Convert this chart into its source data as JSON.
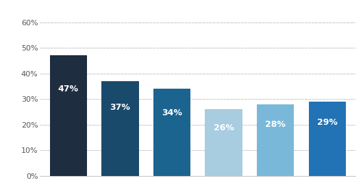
{
  "values": [
    47,
    37,
    34,
    26,
    28,
    29
  ],
  "labels": [
    "47%",
    "37%",
    "34%",
    "26%",
    "28%",
    "29%"
  ],
  "bar_colors": [
    "#1e2d40",
    "#1a4a6b",
    "#1b6490",
    "#a8cce0",
    "#7ab8d9",
    "#2272b6"
  ],
  "ylim": [
    0,
    65
  ],
  "yticks": [
    0,
    10,
    20,
    30,
    40,
    50,
    60
  ],
  "ytick_labels": [
    "0%",
    "10%",
    "20%",
    "30%",
    "40%",
    "50%",
    "60%"
  ],
  "background_color": "#ffffff",
  "grid_color": "#c8c8c8",
  "label_fontsize": 9,
  "label_color": "#ffffff",
  "tick_color": "#555555",
  "tick_fontsize": 8
}
